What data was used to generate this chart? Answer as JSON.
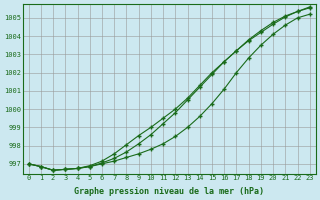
{
  "xlabel": "Graphe pression niveau de la mer (hPa)",
  "bg_color": "#cce8f0",
  "grid_color": "#999999",
  "line_color": "#1a6b1a",
  "x": [
    0,
    1,
    2,
    3,
    4,
    5,
    6,
    7,
    8,
    9,
    10,
    11,
    12,
    13,
    14,
    15,
    16,
    17,
    18,
    19,
    20,
    21,
    22,
    23
  ],
  "series1": [
    997.0,
    996.85,
    996.65,
    996.7,
    996.75,
    996.85,
    997.0,
    997.15,
    997.35,
    997.55,
    997.8,
    998.1,
    998.5,
    999.0,
    999.6,
    1000.3,
    1001.1,
    1002.0,
    1002.8,
    1003.5,
    1004.1,
    1004.6,
    1005.0,
    1005.2
  ],
  "series2": [
    997.0,
    996.85,
    996.65,
    996.7,
    996.75,
    996.85,
    997.05,
    997.3,
    997.65,
    998.1,
    998.6,
    999.2,
    999.8,
    1000.5,
    1001.2,
    1001.9,
    1002.6,
    1003.2,
    1003.8,
    1004.3,
    1004.75,
    1005.1,
    1005.35,
    1005.55
  ],
  "series3": [
    997.0,
    996.85,
    996.65,
    996.7,
    996.75,
    996.9,
    997.15,
    997.55,
    998.05,
    998.55,
    999.0,
    999.5,
    1000.0,
    1000.6,
    1001.3,
    1002.0,
    1002.6,
    1003.2,
    1003.75,
    1004.2,
    1004.65,
    1005.05,
    1005.35,
    1005.6
  ],
  "ylim_min": 996.45,
  "ylim_max": 1005.75,
  "yticks": [
    997,
    998,
    999,
    1000,
    1001,
    1002,
    1003,
    1004,
    1005
  ],
  "xtick_fontsize": 5,
  "ytick_fontsize": 5,
  "xlabel_fontsize": 6
}
